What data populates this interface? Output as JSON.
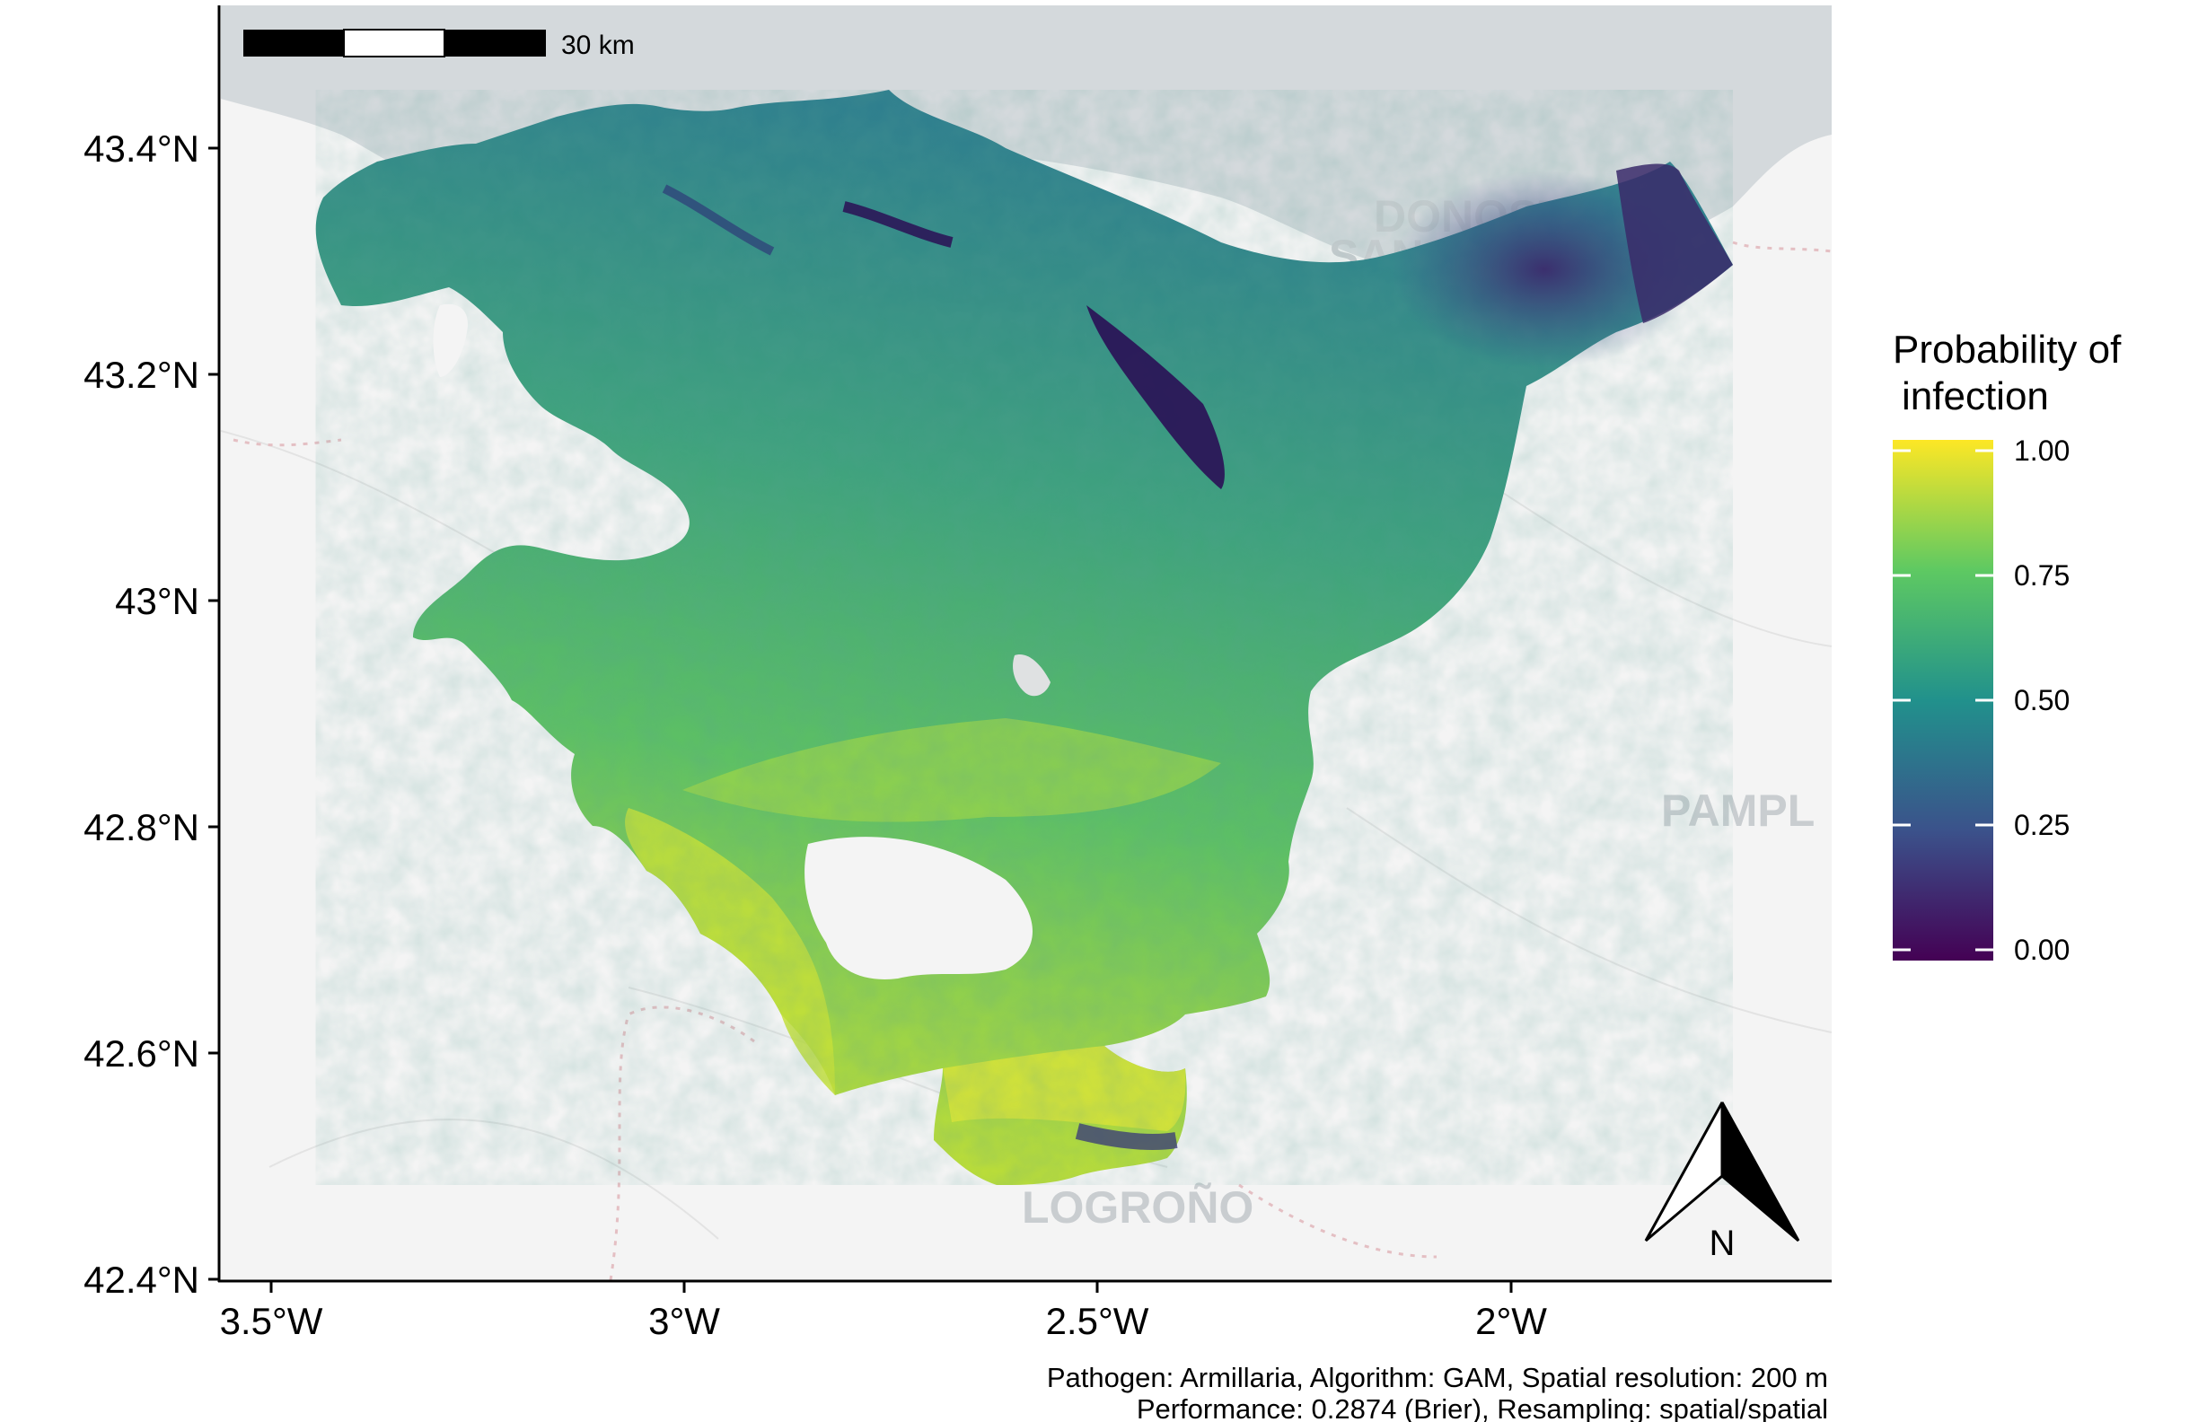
{
  "map": {
    "scale_bar_label": "30 km",
    "north_arrow_label": "N",
    "basemap_city_labels": [
      "DONOSTIA",
      "SAN",
      "PAMPL",
      "LOGROÑO"
    ],
    "lat_ticks": [
      "43.4°N",
      "43.2°N",
      "43°N",
      "42.8°N",
      "42.6°N",
      "42.4°N"
    ],
    "lon_ticks": [
      "3.5°W",
      "3°W",
      "2.5°W",
      "2°W"
    ],
    "colors": {
      "sea": "#d4d9dc",
      "land": "#f4f4f4",
      "viridis": [
        "#440154",
        "#3b528b",
        "#21918c",
        "#5ec962",
        "#fde725"
      ]
    }
  },
  "legend": {
    "title_line1": "Probability of",
    "title_line2": "infection",
    "ticks": [
      "1.00",
      "0.75",
      "0.50",
      "0.25",
      "0.00"
    ]
  },
  "caption": {
    "line1": "Pathogen: Armillaria, Algorithm: GAM, Spatial resolution: 200 m",
    "line2": "Performance: 0.2874 (Brier), Resampling: spatial/spatial"
  }
}
